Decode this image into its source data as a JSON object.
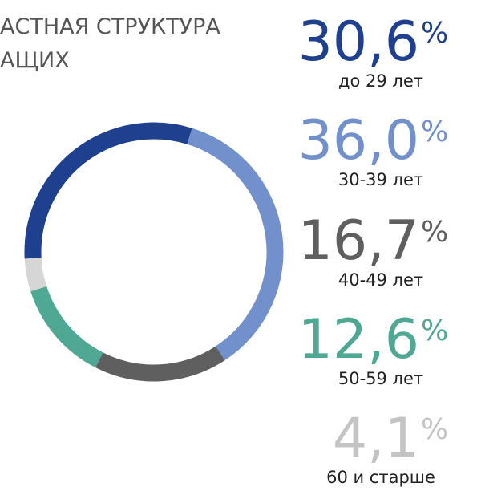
{
  "chart_data": {
    "type": "donut",
    "title_lines": [
      "АСТНАЯ СТРУКТУРА",
      "АЩИХ"
    ],
    "categories": [
      "до 29 лет",
      "30-39 лет",
      "40-49 лет",
      "50-59 лет",
      "60 и старше"
    ],
    "values": [
      30.6,
      36.0,
      16.7,
      12.6,
      4.1
    ],
    "value_labels": [
      "30,6",
      "36,0",
      "16,7",
      "12,6",
      "4,1"
    ],
    "unit_label": "%",
    "colors": [
      "#1f3f8f",
      "#7190cc",
      "#5f5f5f",
      "#4fa893",
      "#d6d6d6"
    ],
    "label_colors": [
      "#1f3f8f",
      "#7190cc",
      "#5f5f5f",
      "#4fa893",
      "#c4c4c4"
    ]
  }
}
